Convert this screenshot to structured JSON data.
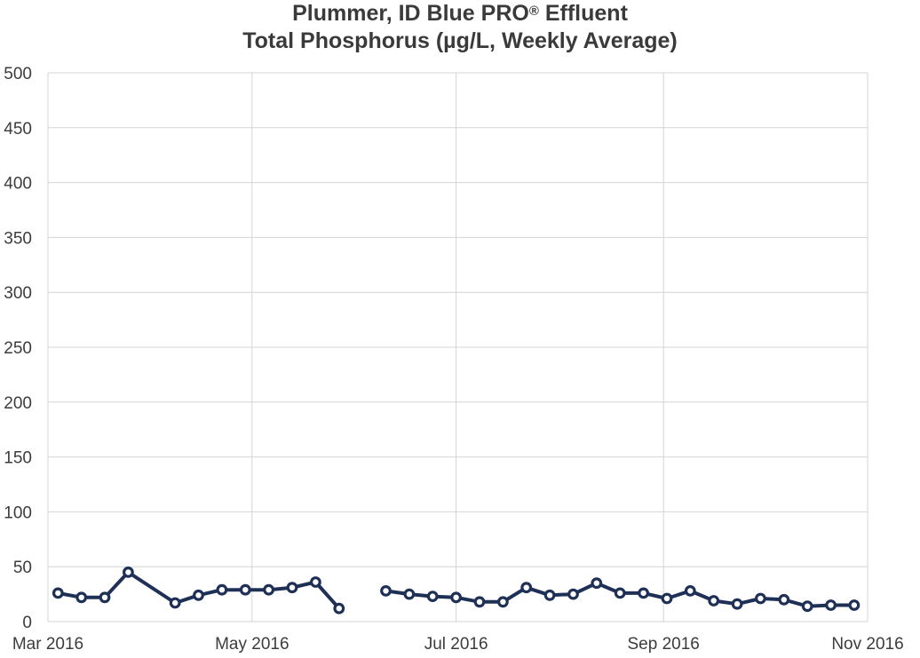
{
  "colors": {
    "series": "#1f3056",
    "marker_fill": "#ffffff",
    "grid": "#d4d4d4",
    "text": "#3a3a3a"
  },
  "chart_data": {
    "type": "line",
    "title_line1_main": "Plummer, ID Blue PRO",
    "title_line1_sup": "®",
    "title_line1_tail": " Effluent",
    "title_line2": "Total Phosphorus (µg/L, Weekly Average)",
    "xlabel": "",
    "ylabel": "",
    "ylim": [
      0,
      500
    ],
    "yticks": [
      "0",
      "50",
      "100",
      "150",
      "200",
      "250",
      "300",
      "350",
      "400",
      "450",
      "500"
    ],
    "xlim": [
      "2016-03-01",
      "2016-11-01"
    ],
    "xticks": [
      {
        "date": "2016-03-01",
        "label": "Mar 2016"
      },
      {
        "date": "2016-05-01",
        "label": "May 2016"
      },
      {
        "date": "2016-07-01",
        "label": "Jul 2016"
      },
      {
        "date": "2016-09-01",
        "label": "Sep 2016"
      },
      {
        "date": "2016-11-01",
        "label": "Nov 2016"
      }
    ],
    "grid": true,
    "legend": "none",
    "series": [
      {
        "segments": [
          [
            {
              "x": "2016-03-04",
              "y": 26
            },
            {
              "x": "2016-03-11",
              "y": 22
            },
            {
              "x": "2016-03-18",
              "y": 22
            },
            {
              "x": "2016-03-25",
              "y": 45
            },
            {
              "x": "2016-04-08",
              "y": 17
            },
            {
              "x": "2016-04-15",
              "y": 24
            },
            {
              "x": "2016-04-22",
              "y": 29
            },
            {
              "x": "2016-04-29",
              "y": 29
            },
            {
              "x": "2016-05-06",
              "y": 29
            },
            {
              "x": "2016-05-13",
              "y": 31
            },
            {
              "x": "2016-05-20",
              "y": 36
            },
            {
              "x": "2016-05-27",
              "y": 12
            }
          ],
          [
            {
              "x": "2016-06-10",
              "y": 28
            },
            {
              "x": "2016-06-17",
              "y": 25
            },
            {
              "x": "2016-06-24",
              "y": 23
            },
            {
              "x": "2016-07-01",
              "y": 22
            },
            {
              "x": "2016-07-08",
              "y": 18
            },
            {
              "x": "2016-07-15",
              "y": 18
            },
            {
              "x": "2016-07-22",
              "y": 31
            },
            {
              "x": "2016-07-29",
              "y": 24
            },
            {
              "x": "2016-08-05",
              "y": 25
            },
            {
              "x": "2016-08-12",
              "y": 35
            },
            {
              "x": "2016-08-19",
              "y": 26
            },
            {
              "x": "2016-08-26",
              "y": 26
            },
            {
              "x": "2016-09-02",
              "y": 21
            },
            {
              "x": "2016-09-09",
              "y": 28
            },
            {
              "x": "2016-09-16",
              "y": 19
            },
            {
              "x": "2016-09-23",
              "y": 16
            },
            {
              "x": "2016-09-30",
              "y": 21
            },
            {
              "x": "2016-10-07",
              "y": 20
            },
            {
              "x": "2016-10-14",
              "y": 14
            },
            {
              "x": "2016-10-21",
              "y": 15
            },
            {
              "x": "2016-10-28",
              "y": 15
            }
          ]
        ]
      }
    ]
  }
}
